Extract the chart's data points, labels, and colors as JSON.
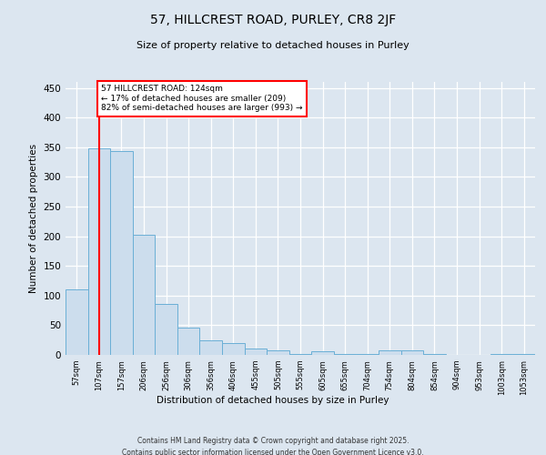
{
  "title_line1": "57, HILLCREST ROAD, PURLEY, CR8 2JF",
  "title_line2": "Size of property relative to detached houses in Purley",
  "xlabel": "Distribution of detached houses by size in Purley",
  "ylabel": "Number of detached properties",
  "bar_color": "#ccdded",
  "bar_edge_color": "#6aafd6",
  "annotation_line1": "57 HILLCREST ROAD: 124sqm",
  "annotation_line2": "← 17% of detached houses are smaller (209)",
  "annotation_line3": "82% of semi-detached houses are larger (993) →",
  "marker_color": "red",
  "categories": [
    "57sqm",
    "107sqm",
    "157sqm",
    "206sqm",
    "256sqm",
    "306sqm",
    "356sqm",
    "406sqm",
    "455sqm",
    "505sqm",
    "555sqm",
    "605sqm",
    "655sqm",
    "704sqm",
    "754sqm",
    "804sqm",
    "854sqm",
    "904sqm",
    "953sqm",
    "1003sqm",
    "1053sqm"
  ],
  "values": [
    110,
    348,
    344,
    203,
    86,
    46,
    25,
    20,
    10,
    7,
    2,
    6,
    1,
    1,
    8,
    7,
    1,
    0,
    0,
    1,
    2
  ],
  "ylim": [
    0,
    460
  ],
  "yticks": [
    0,
    50,
    100,
    150,
    200,
    250,
    300,
    350,
    400,
    450
  ],
  "bg_color": "#dce6f0",
  "footer_line1": "Contains HM Land Registry data © Crown copyright and database right 2025.",
  "footer_line2": "Contains public sector information licensed under the Open Government Licence v3.0."
}
